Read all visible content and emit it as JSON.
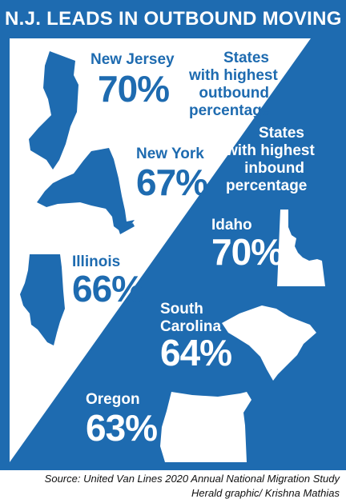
{
  "title": "N.J. LEADS IN OUTBOUND MOVING",
  "captions": {
    "outbound": [
      "States",
      "with highest",
      "outbound",
      "percentage"
    ],
    "inbound": [
      "States",
      "with highest",
      "inbound",
      "percentage"
    ]
  },
  "outbound_states": [
    {
      "name": "New Jersey",
      "percent": "70%",
      "icon": "new-jersey-state-icon"
    },
    {
      "name": "New York",
      "percent": "67%",
      "icon": "new-york-state-icon"
    },
    {
      "name": "Illinois",
      "percent": "66%",
      "icon": "illinois-state-icon"
    }
  ],
  "inbound_states": [
    {
      "name": "Idaho",
      "percent": "70%",
      "icon": "idaho-state-icon"
    },
    {
      "name_lines": [
        "South",
        "Carolina"
      ],
      "percent": "64%",
      "icon": "south-carolina-state-icon"
    },
    {
      "name": "Oregon",
      "percent": "63%",
      "icon": "oregon-state-icon"
    }
  ],
  "source_line": "Source: United Van Lines 2020 Annual National Migration Study",
  "credit_line": "Herald graphic/ Krishna Mathias",
  "colors": {
    "primary_blue": "#1e6bb0",
    "white": "#ffffff",
    "text_dark": "#111111"
  }
}
